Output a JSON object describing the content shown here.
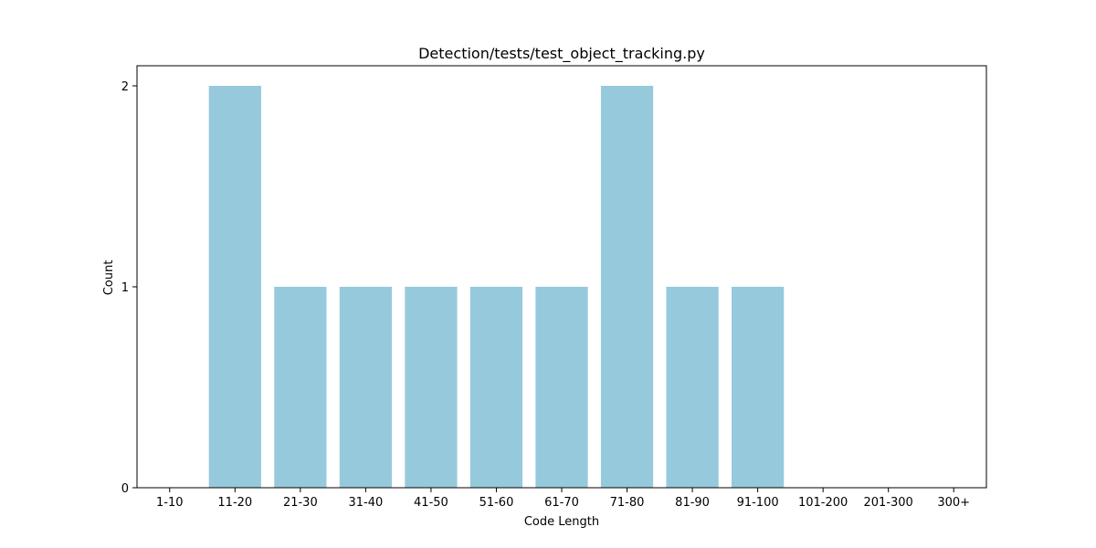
{
  "chart_data": {
    "type": "bar",
    "title": "Detection/tests/test_object_tracking.py",
    "xlabel": "Code Length",
    "ylabel": "Count",
    "categories": [
      "1-10",
      "11-20",
      "21-30",
      "31-40",
      "41-50",
      "51-60",
      "61-70",
      "71-80",
      "81-90",
      "91-100",
      "101-200",
      "201-300",
      "300+"
    ],
    "values": [
      0,
      2,
      1,
      1,
      1,
      1,
      1,
      2,
      1,
      1,
      0,
      0,
      0
    ],
    "ylim": [
      0,
      2.1
    ],
    "yticks": [
      0,
      1,
      2
    ],
    "grid": false,
    "bar_color": "#96c9dc"
  }
}
